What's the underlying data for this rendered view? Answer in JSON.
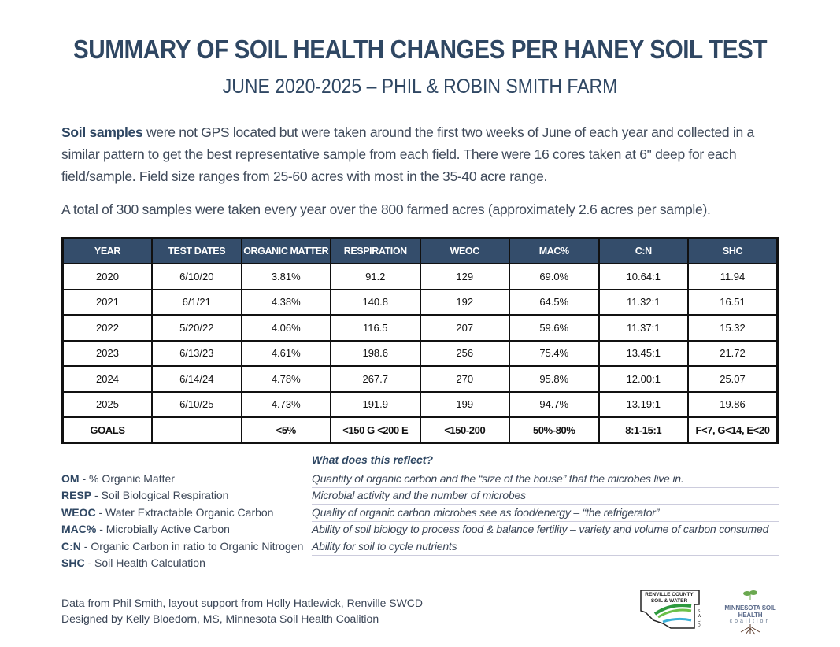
{
  "title": "SUMMARY OF SOIL HEALTH CHANGES PER HANEY SOIL TEST",
  "subtitle": "JUNE 2020-2025  –  PHIL & ROBIN SMITH FARM",
  "para1_bold": "Soil samples",
  "para1_rest": " were not GPS located but were taken around the first two weeks of June of each year and collected in a similar pattern to get the best representative sample from each field. There were 16 cores taken at 6\" deep for each field/sample. Field size ranges from 25-60 acres with most in the 35-40 acre range.",
  "para2": "A total of 300 samples were taken every year over the 800 farmed acres (approximately 2.6 acres per sample).",
  "table": {
    "headers": [
      "YEAR",
      "TEST DATES",
      "ORGANIC MATTER",
      "RESPIRATION",
      "WEOC",
      "MAC%",
      "C:N",
      "SHC"
    ],
    "rows": [
      [
        "2020",
        "6/10/20",
        "3.81%",
        "91.2",
        "129",
        "69.0%",
        "10.64:1",
        "11.94"
      ],
      [
        "2021",
        "6/1/21",
        "4.38%",
        "140.8",
        "192",
        "64.5%",
        "11.32:1",
        "16.51"
      ],
      [
        "2022",
        "5/20/22",
        "4.06%",
        "116.5",
        "207",
        "59.6%",
        "11.37:1",
        "15.32"
      ],
      [
        "2023",
        "6/13/23",
        "4.61%",
        "198.6",
        "256",
        "75.4%",
        "13.45:1",
        "21.72"
      ],
      [
        "2024",
        "6/14/24",
        "4.78%",
        "267.7",
        "270",
        "95.8%",
        "12.00:1",
        "25.07"
      ],
      [
        "2025",
        "6/10/25",
        "4.73%",
        "191.9",
        "199",
        "94.7%",
        "13.19:1",
        "19.86"
      ]
    ],
    "goals": [
      "GOALS",
      "",
      "<5%",
      "<150 G <200 E",
      "<150-200",
      "50%-80%",
      "8:1-15:1",
      "F<7, G<14, E<20"
    ]
  },
  "legend": {
    "heading": "What does this reflect?",
    "items": [
      {
        "abbr": "OM",
        "name": " - % Organic Matter",
        "desc": "Quantity of organic carbon and the “size of the house” that the microbes live in."
      },
      {
        "abbr": "RESP",
        "name": " - Soil Biological Respiration",
        "desc": "Microbial activity and the number of microbes"
      },
      {
        "abbr": "WEOC",
        "name": " - Water Extractable Organic Carbon",
        "desc": "Quality of organic carbon microbes see as food/energy – “the refrigerator”"
      },
      {
        "abbr": "MAC%",
        "name": " - Microbially Active Carbon",
        "desc": "Ability of soil biology to process food & balance fertility – variety and volume of carbon consumed"
      },
      {
        "abbr": "C:N",
        "name": " - Organic Carbon in ratio to Organic Nitrogen",
        "desc": "Ability for soil to cycle nutrients"
      },
      {
        "abbr": "SHC",
        "name": " - Soil Health Calculation",
        "desc": ""
      }
    ]
  },
  "footer": [
    "Data from Phil Smith, layout support from Holly Hatlewick, Renville SWCD",
    "Designed by Kelly Bloedorn, MS, Minnesota Soil Health Coalition"
  ],
  "logos": {
    "renville": "RENVILLE COUNTY SOIL & WATER SWCD",
    "mshc_line1": "MINNESOTA SOIL HEALTH",
    "mshc_line2": "coalition"
  }
}
